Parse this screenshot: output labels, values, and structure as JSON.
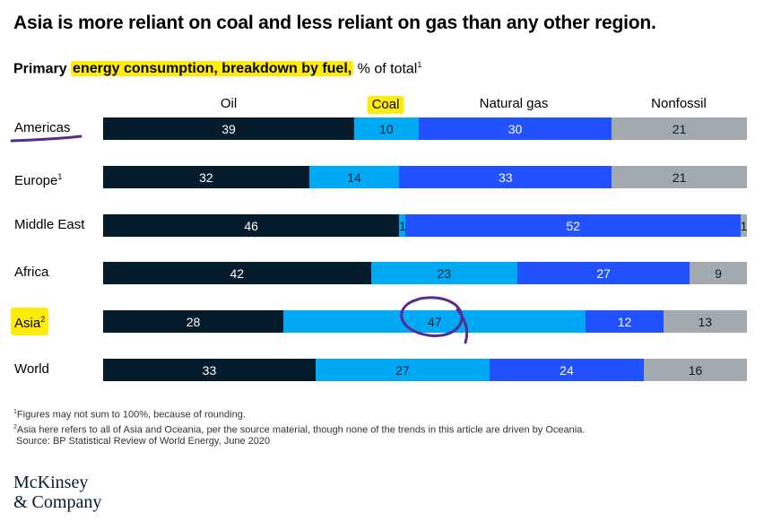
{
  "title": "Asia is more reliant on coal and less reliant on gas than any other region.",
  "subtitle": {
    "lead": "Primary ",
    "highlight": "energy consumption, breakdown by fuel,",
    "tail": " % of total",
    "footnote_mark": "1"
  },
  "colors": {
    "oil": "#051c2c",
    "coal": "#00a9f4",
    "natural_gas": "#2251ff",
    "nonfossil": "#a2aab0",
    "highlight": "#ffeb0a",
    "annotation": "#5b2a8e"
  },
  "chart_data": {
    "type": "bar",
    "orientation": "horizontal",
    "stacked": true,
    "normalized": "percent",
    "title": "Primary energy consumption, breakdown by fuel, % of total",
    "categories": [
      "Americas",
      "Europe",
      "Middle East",
      "Africa",
      "Asia",
      "World"
    ],
    "category_footnotes": [
      "",
      "1",
      "",
      "",
      "2",
      ""
    ],
    "series": [
      {
        "name": "Oil",
        "key": "oil",
        "values": [
          39,
          32,
          46,
          42,
          28,
          33
        ]
      },
      {
        "name": "Coal",
        "key": "coal",
        "values": [
          10,
          14,
          1,
          23,
          47,
          27
        ]
      },
      {
        "name": "Natural gas",
        "key": "gas",
        "values": [
          30,
          33,
          52,
          27,
          12,
          24
        ]
      },
      {
        "name": "Nonfossil",
        "key": "nonfossil",
        "values": [
          21,
          21,
          1,
          9,
          13,
          16
        ]
      }
    ],
    "xlim": [
      0,
      100
    ],
    "xlabel": "",
    "ylabel": "",
    "grid": false,
    "legend": "top (column headers)",
    "highlighted": [
      "Coal",
      "Asia",
      "Americas"
    ]
  },
  "footnotes": [
    {
      "mark": "1",
      "text": "Figures may not sum to 100%, because of rounding."
    },
    {
      "mark": "2",
      "text": "Asia here refers to all of Asia and Oceania, per the source material, though none of the trends in this article are driven by Oceania."
    }
  ],
  "source": "Source: BP Statistical Review of World Energy, June 2020",
  "logo": {
    "line1": "McKinsey",
    "line2": "& Company"
  }
}
